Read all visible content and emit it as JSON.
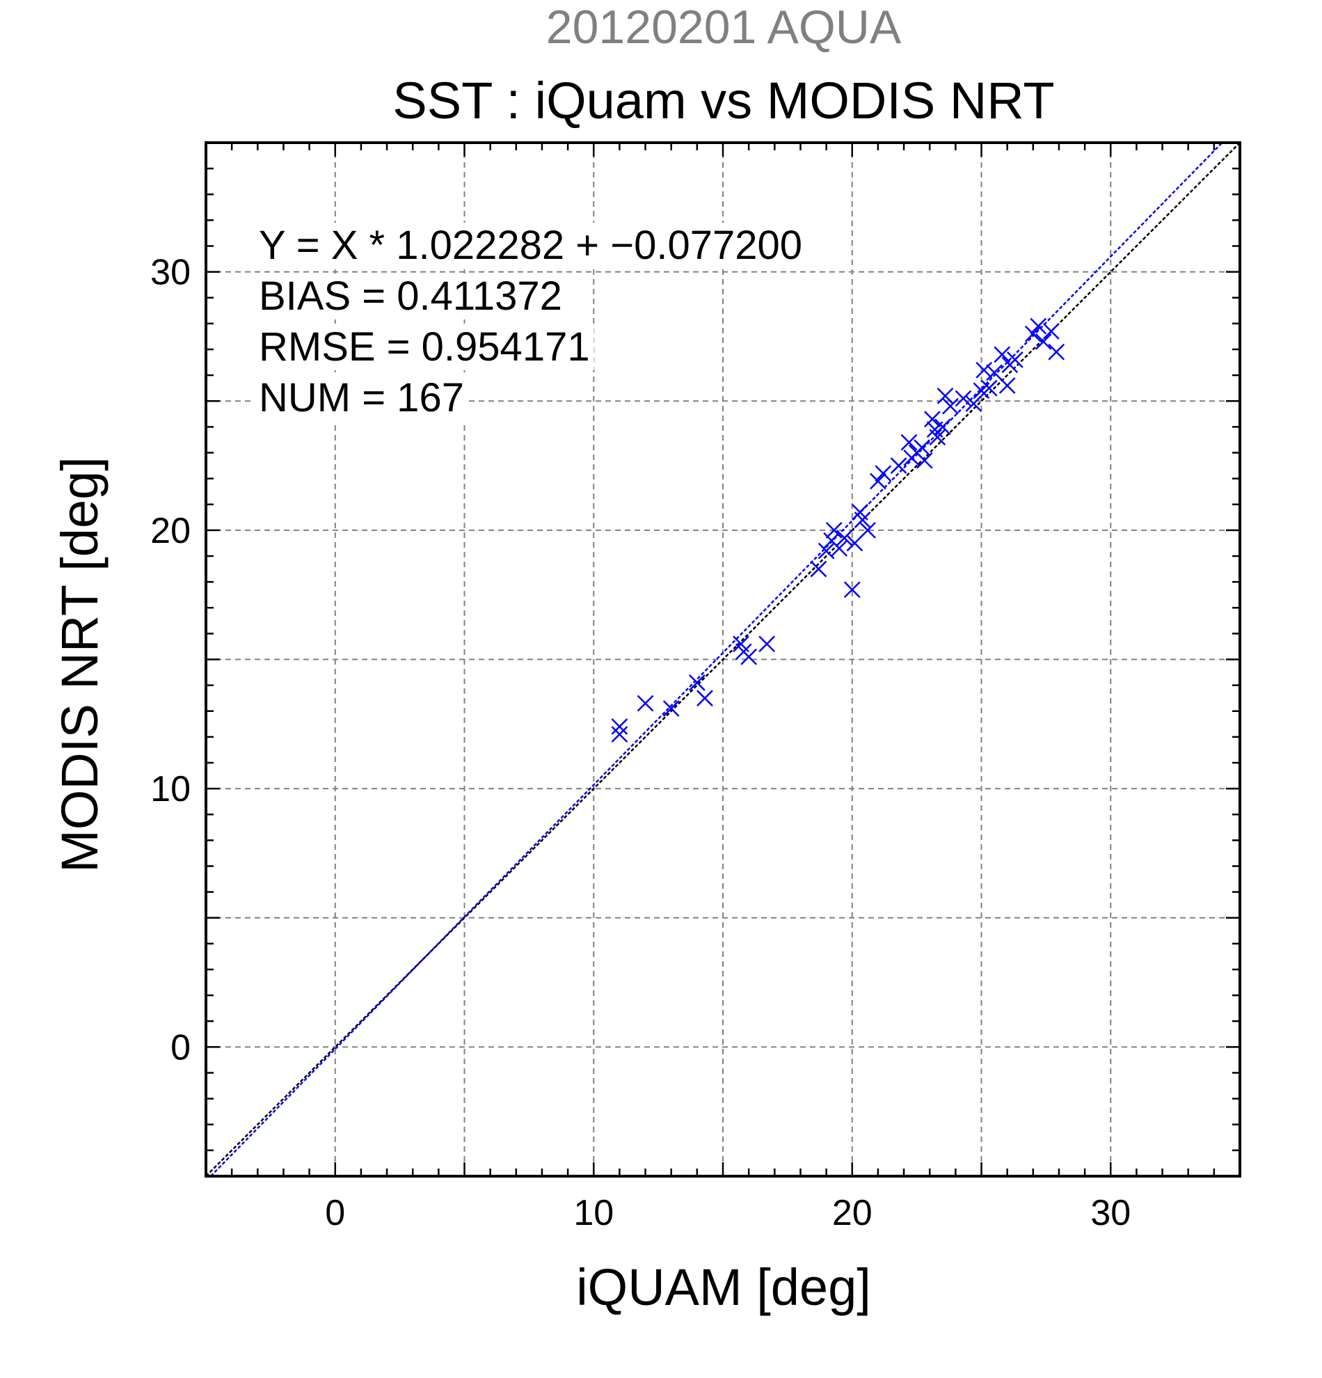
{
  "chart_data": {
    "type": "scatter",
    "supertitle": "20120201 AQUA",
    "title": "SST : iQuam vs MODIS NRT",
    "xlabel": "iQUAM [deg]",
    "ylabel": "MODIS NRT [deg]",
    "xlim": [
      -5,
      35
    ],
    "ylim": [
      -5,
      35
    ],
    "xticks": [
      0,
      10,
      20,
      30
    ],
    "yticks": [
      0,
      10,
      20,
      30
    ],
    "grid": true,
    "stats": [
      "Y = X * 1.022282 + −0.077200",
      "BIAS = 0.411372",
      "RMSE = 0.954171",
      "NUM = 167"
    ],
    "lines": [
      {
        "kind": "one-to-one",
        "slope": 1.0,
        "intercept": 0.0,
        "color": "#000000"
      },
      {
        "kind": "regression",
        "slope": 1.022282,
        "intercept": -0.0772,
        "color": "#0000ff"
      }
    ],
    "marker_color": "#0000ff",
    "points": [
      [
        11.0,
        12.4
      ],
      [
        11.0,
        12.1
      ],
      [
        12.0,
        13.3
      ],
      [
        13.0,
        13.1
      ],
      [
        14.0,
        14.1
      ],
      [
        14.3,
        13.5
      ],
      [
        15.7,
        15.6
      ],
      [
        15.8,
        15.3
      ],
      [
        16.0,
        15.1
      ],
      [
        16.7,
        15.6
      ],
      [
        18.7,
        18.5
      ],
      [
        19.0,
        19.2
      ],
      [
        19.2,
        19.6
      ],
      [
        19.3,
        20.0
      ],
      [
        19.5,
        19.3
      ],
      [
        19.7,
        19.7
      ],
      [
        20.0,
        17.7
      ],
      [
        20.1,
        19.5
      ],
      [
        20.3,
        20.7
      ],
      [
        20.4,
        20.4
      ],
      [
        20.6,
        20.0
      ],
      [
        21.0,
        21.9
      ],
      [
        21.2,
        22.2
      ],
      [
        21.8,
        22.5
      ],
      [
        22.2,
        23.4
      ],
      [
        22.3,
        22.8
      ],
      [
        22.5,
        23.0
      ],
      [
        22.7,
        23.2
      ],
      [
        22.8,
        22.7
      ],
      [
        23.1,
        24.3
      ],
      [
        23.2,
        23.9
      ],
      [
        23.3,
        23.6
      ],
      [
        23.5,
        24.0
      ],
      [
        23.6,
        25.2
      ],
      [
        23.8,
        24.8
      ],
      [
        24.3,
        25.1
      ],
      [
        24.7,
        24.9
      ],
      [
        25.0,
        25.4
      ],
      [
        25.1,
        26.2
      ],
      [
        25.3,
        25.5
      ],
      [
        25.5,
        26.1
      ],
      [
        25.8,
        26.8
      ],
      [
        26.0,
        25.6
      ],
      [
        26.1,
        26.4
      ],
      [
        26.3,
        26.6
      ],
      [
        27.0,
        27.6
      ],
      [
        27.2,
        27.9
      ],
      [
        27.4,
        27.3
      ],
      [
        27.7,
        27.7
      ],
      [
        27.9,
        26.9
      ]
    ]
  }
}
